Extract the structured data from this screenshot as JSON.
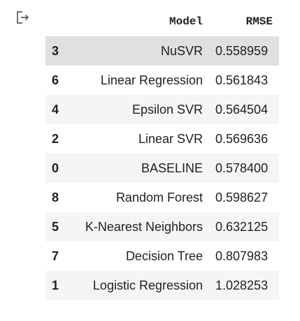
{
  "output_icon": "output-redirect-icon",
  "table": {
    "headers": {
      "index": "",
      "model": "Model",
      "rmse": "RMSE"
    },
    "rows": [
      {
        "index": "3",
        "model": "NuSVR",
        "rmse": "0.558959"
      },
      {
        "index": "6",
        "model": "Linear Regression",
        "rmse": "0.561843"
      },
      {
        "index": "4",
        "model": "Epsilon SVR",
        "rmse": "0.564504"
      },
      {
        "index": "2",
        "model": "Linear SVR",
        "rmse": "0.569636"
      },
      {
        "index": "0",
        "model": "BASELINE",
        "rmse": "0.578400"
      },
      {
        "index": "8",
        "model": "Random Forest",
        "rmse": "0.598627"
      },
      {
        "index": "5",
        "model": "K-Nearest Neighbors",
        "rmse": "0.632125"
      },
      {
        "index": "7",
        "model": "Decision Tree",
        "rmse": "0.807983"
      },
      {
        "index": "1",
        "model": "Logistic Regression",
        "rmse": "1.028253"
      }
    ]
  },
  "colors": {
    "row_odd": "#f5f5f5",
    "row_even": "#ffffff",
    "row_hover": "#e0e0e0",
    "text": "#212121"
  }
}
